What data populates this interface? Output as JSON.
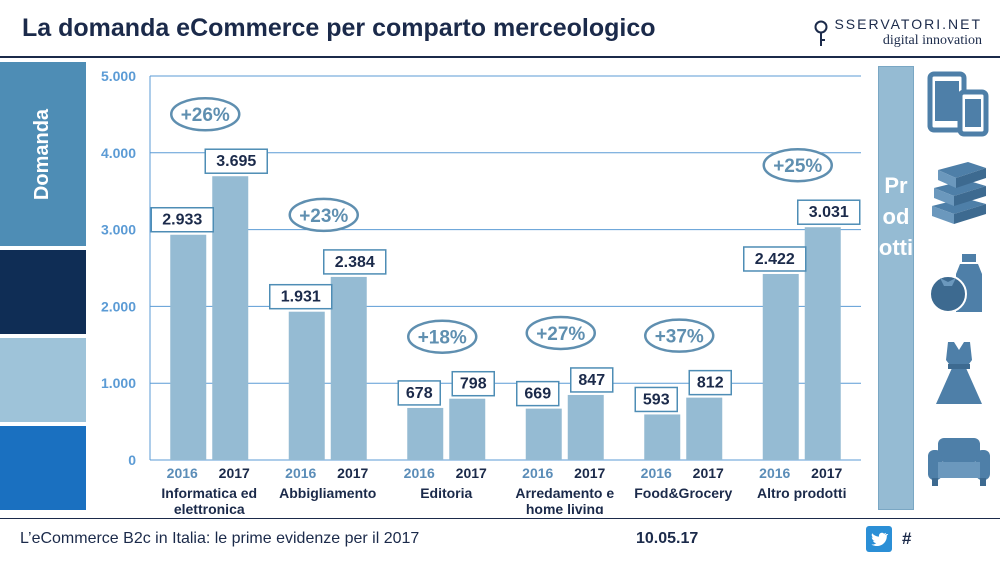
{
  "title": "La domanda eCommerce per comparto merceologico",
  "logo": {
    "line1": "SSERVATORI.NET",
    "line2": "digital innovation"
  },
  "left_label": "Domanda",
  "right_label": "Prodotti",
  "footer": {
    "text": "L’eCommerce B2c in Italia: le prime evidenze per il 2017",
    "date": "10.05.17",
    "hashtag": "#"
  },
  "icons": [
    "devices-icon",
    "books-icon",
    "food-icon",
    "dress-icon",
    "sofa-icon"
  ],
  "colors": {
    "bar": "#95bbd3",
    "navy": "#1b2a4a",
    "grid": "#5b9bd5",
    "axis_label": "#5b9bd5",
    "growth": "#5f8fb0",
    "year": "#5b8db8"
  },
  "chart_data": {
    "type": "bar",
    "title": "La domanda eCommerce per comparto merceologico",
    "ylim": [
      0,
      5000
    ],
    "yticks": [
      "0",
      "1.000",
      "2.000",
      "3.000",
      "4.000",
      "5.000"
    ],
    "yticks_values": [
      0,
      1000,
      2000,
      3000,
      4000,
      5000
    ],
    "grid": true,
    "series_years": [
      "2016",
      "2017"
    ],
    "categories": [
      {
        "name": [
          "Informatica ed",
          "elettronica"
        ],
        "values": [
          2933,
          3695
        ],
        "labels": [
          "2.933",
          "3.695"
        ],
        "growth": "+26%"
      },
      {
        "name": [
          "Abbigliamento"
        ],
        "values": [
          1931,
          2384
        ],
        "labels": [
          "1.931",
          "2.384"
        ],
        "growth": "+23%"
      },
      {
        "name": [
          "Editoria"
        ],
        "values": [
          678,
          798
        ],
        "labels": [
          "678",
          "798"
        ],
        "growth": "+18%"
      },
      {
        "name": [
          "Arredamento e",
          "home living"
        ],
        "values": [
          669,
          847
        ],
        "labels": [
          "669",
          "847"
        ],
        "growth": "+27%"
      },
      {
        "name": [
          "Food&Grocery"
        ],
        "values": [
          593,
          812
        ],
        "labels": [
          "593",
          "812"
        ],
        "growth": "+37%"
      },
      {
        "name": [
          "Altro prodotti"
        ],
        "values": [
          2422,
          3031
        ],
        "labels": [
          "2.422",
          "3.031"
        ],
        "growth": "+25%"
      }
    ]
  }
}
